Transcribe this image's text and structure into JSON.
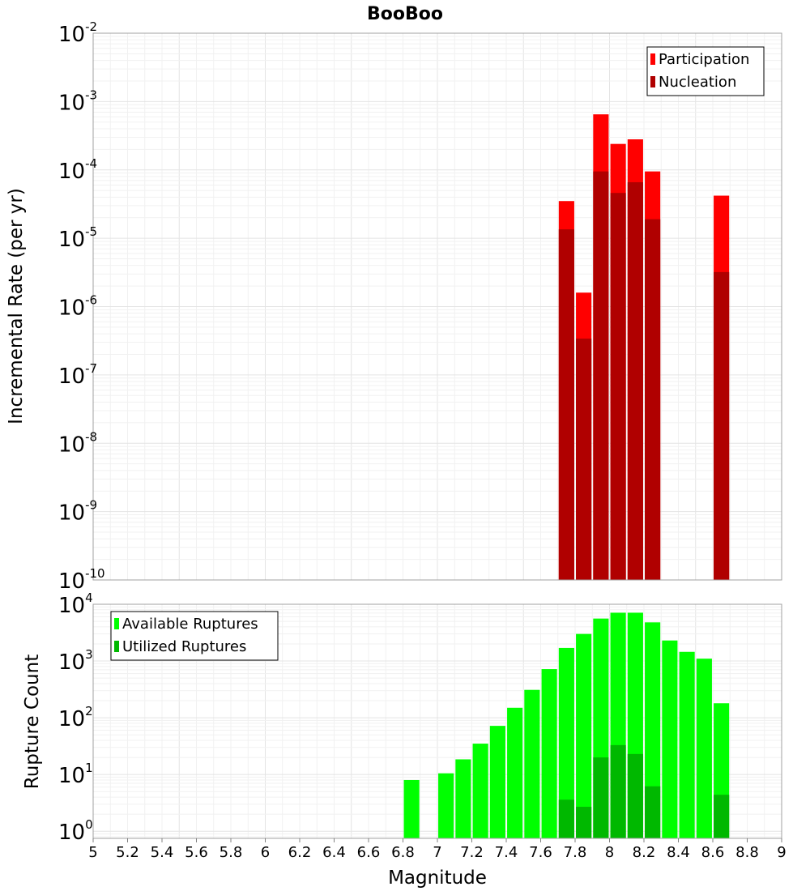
{
  "chart_data": [
    {
      "type": "bar",
      "title": "BooBoo",
      "xlabel": "",
      "ylabel": "Incremental Rate (per yr)",
      "yscale": "log",
      "ylim": [
        1e-10,
        0.01
      ],
      "xlim": [
        5,
        9
      ],
      "y_ticks": [
        {
          "base": "10",
          "exp": "-10"
        },
        {
          "base": "10",
          "exp": "-9"
        },
        {
          "base": "10",
          "exp": "-8"
        },
        {
          "base": "10",
          "exp": "-7"
        },
        {
          "base": "10",
          "exp": "-6"
        },
        {
          "base": "10",
          "exp": "-5"
        },
        {
          "base": "10",
          "exp": "-4"
        },
        {
          "base": "10",
          "exp": "-3"
        },
        {
          "base": "10",
          "exp": "-2"
        }
      ],
      "grid": true,
      "legend_position": "top-right",
      "bar_width": 0.09,
      "series": [
        {
          "name": "Participation",
          "color": "#ff0000",
          "x": [
            7.75,
            7.85,
            7.95,
            8.05,
            8.15,
            8.25,
            8.65
          ],
          "values": [
            3.5e-05,
            1.6e-06,
            0.00065,
            0.00024,
            0.00028,
            9.5e-05,
            4.2e-05
          ]
        },
        {
          "name": "Nucleation",
          "color": "#b00000",
          "x": [
            7.75,
            7.85,
            7.95,
            8.05,
            8.15,
            8.25,
            8.65
          ],
          "values": [
            1.35e-05,
            3.4e-07,
            9.5e-05,
            4.6e-05,
            6.6e-05,
            1.9e-05,
            3.2e-06
          ]
        }
      ]
    },
    {
      "type": "bar",
      "title": "",
      "xlabel": "Magnitude",
      "ylabel": "Rupture Count",
      "yscale": "log",
      "ylim": [
        0.75,
        10000
      ],
      "xlim": [
        5,
        9
      ],
      "x_ticks": [
        "5",
        "5.2",
        "5.4",
        "5.6",
        "5.8",
        "6",
        "6.2",
        "6.4",
        "6.6",
        "6.8",
        "7",
        "7.2",
        "7.4",
        "7.6",
        "7.8",
        "8",
        "8.2",
        "8.4",
        "8.6",
        "8.8",
        "9"
      ],
      "y_ticks": [
        {
          "base": "10",
          "exp": "0"
        },
        {
          "base": "10",
          "exp": "1"
        },
        {
          "base": "10",
          "exp": "2"
        },
        {
          "base": "10",
          "exp": "3"
        },
        {
          "base": "10",
          "exp": "4"
        }
      ],
      "grid": true,
      "legend_position": "top-left",
      "bar_width": 0.09,
      "series": [
        {
          "name": "Available Ruptures",
          "color": "#00ff00",
          "x": [
            6.85,
            7.05,
            7.15,
            7.25,
            7.35,
            7.45,
            7.55,
            7.65,
            7.75,
            7.85,
            7.95,
            8.05,
            8.15,
            8.25,
            8.35,
            8.45,
            8.55,
            8.65
          ],
          "values": [
            8,
            10.5,
            18.5,
            35,
            72,
            150,
            310,
            720,
            1700,
            3000,
            5600,
            7100,
            7100,
            4800,
            2300,
            1450,
            1100,
            180
          ]
        },
        {
          "name": "Utilized Ruptures",
          "color": "#00b800",
          "x": [
            7.75,
            7.85,
            7.95,
            8.05,
            8.15,
            8.25,
            8.65
          ],
          "values": [
            3.6,
            2.7,
            20,
            33,
            23,
            6.2,
            4.4
          ]
        }
      ]
    }
  ]
}
